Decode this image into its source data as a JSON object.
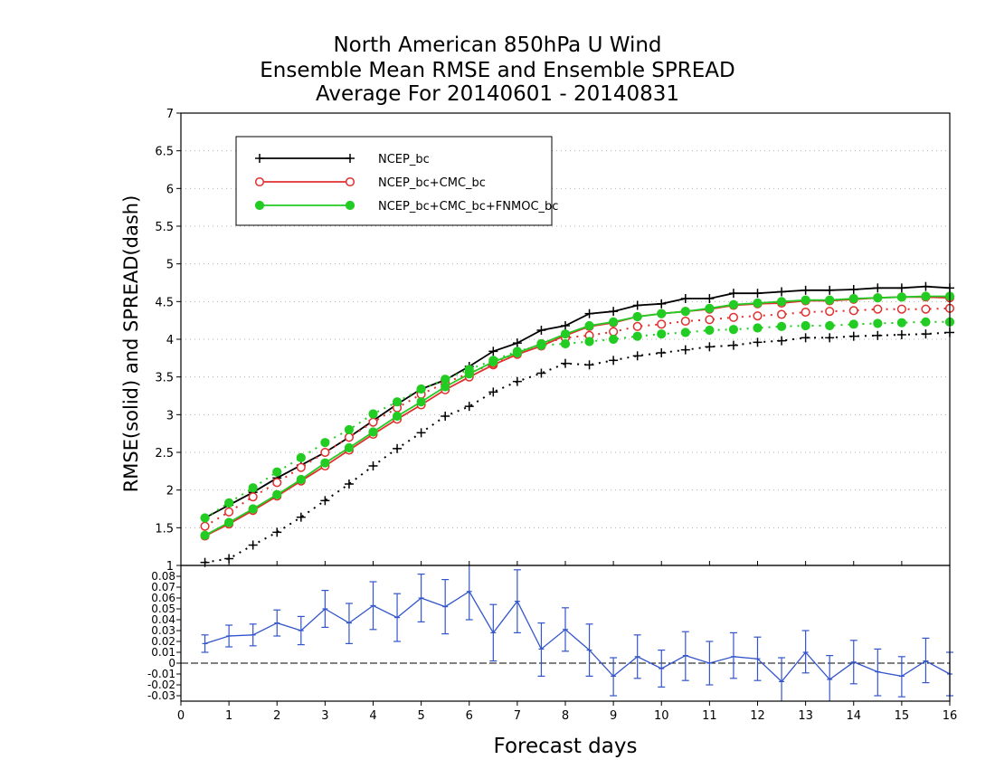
{
  "title": {
    "line1": "North American 850hPa U Wind",
    "line2": "Ensemble Mean RMSE and Ensemble SPREAD",
    "line3": "Average For 20140601 - 20140831"
  },
  "chart_data": [
    {
      "type": "line",
      "ylabel": "RMSE(solid) and SPREAD(dash)",
      "xlim": [
        0,
        16
      ],
      "ylim": [
        1,
        7
      ],
      "yticks": [
        "1",
        "1.5",
        "2",
        "2.5",
        "3",
        "3.5",
        "4",
        "4.5",
        "5",
        "5.5",
        "6",
        "6.5",
        "7"
      ],
      "grid": true,
      "legend_position": "top-left",
      "x": [
        0.5,
        1,
        1.5,
        2,
        2.5,
        3,
        3.5,
        4,
        4.5,
        5,
        5.5,
        6,
        6.5,
        7,
        7.5,
        8,
        8.5,
        9,
        9.5,
        10,
        10.5,
        11,
        11.5,
        12,
        12.5,
        13,
        13.5,
        14,
        14.5,
        15,
        15.5,
        16
      ],
      "series": [
        {
          "name": "NCEP_bc",
          "color": "#000000",
          "marker": "plus",
          "style": "solid",
          "values": [
            1.63,
            1.8,
            1.97,
            2.16,
            2.33,
            2.5,
            2.7,
            2.92,
            3.14,
            3.34,
            3.46,
            3.64,
            3.84,
            3.95,
            4.12,
            4.18,
            4.34,
            4.37,
            4.45,
            4.47,
            4.54,
            4.54,
            4.61,
            4.61,
            4.63,
            4.65,
            4.65,
            4.66,
            4.68,
            4.68,
            4.7,
            4.68
          ]
        },
        {
          "name": "NCEP_bc",
          "color": "#000000",
          "marker": "plus",
          "style": "dotted",
          "values": [
            1.04,
            1.09,
            1.27,
            1.44,
            1.64,
            1.86,
            2.08,
            2.32,
            2.55,
            2.76,
            2.98,
            3.11,
            3.3,
            3.44,
            3.55,
            3.68,
            3.66,
            3.72,
            3.78,
            3.82,
            3.86,
            3.9,
            3.92,
            3.96,
            3.98,
            4.02,
            4.02,
            4.04,
            4.05,
            4.06,
            4.07,
            4.09
          ]
        },
        {
          "name": "NCEP_bc+CMC_bc",
          "color": "#e03030",
          "marker": "open-circle",
          "style": "solid",
          "values": [
            1.39,
            1.55,
            1.73,
            1.92,
            2.12,
            2.32,
            2.53,
            2.74,
            2.94,
            3.13,
            3.33,
            3.5,
            3.66,
            3.8,
            3.91,
            4.05,
            4.17,
            4.22,
            4.3,
            4.34,
            4.37,
            4.4,
            4.45,
            4.47,
            4.48,
            4.51,
            4.51,
            4.53,
            4.55,
            4.56,
            4.56,
            4.55
          ]
        },
        {
          "name": "NCEP_bc+CMC_bc",
          "color": "#e03030",
          "marker": "open-circle",
          "style": "dotted",
          "values": [
            1.52,
            1.71,
            1.91,
            2.1,
            2.3,
            2.5,
            2.7,
            2.9,
            3.09,
            3.27,
            3.42,
            3.55,
            3.68,
            3.82,
            3.94,
            4.02,
            4.05,
            4.1,
            4.17,
            4.2,
            4.24,
            4.26,
            4.29,
            4.31,
            4.33,
            4.36,
            4.37,
            4.38,
            4.4,
            4.4,
            4.4,
            4.41
          ]
        },
        {
          "name": "NCEP_bc+CMC_bc+FNMOC_bc",
          "color": "#22cc22",
          "marker": "filled-circle",
          "style": "solid",
          "values": [
            1.4,
            1.57,
            1.75,
            1.94,
            2.14,
            2.36,
            2.56,
            2.77,
            2.98,
            3.17,
            3.37,
            3.54,
            3.7,
            3.82,
            3.94,
            4.07,
            4.18,
            4.23,
            4.3,
            4.34,
            4.37,
            4.41,
            4.46,
            4.48,
            4.5,
            4.52,
            4.52,
            4.54,
            4.55,
            4.56,
            4.57,
            4.57
          ]
        },
        {
          "name": "NCEP_bc+CMC_bc+FNMOC_bc",
          "color": "#22cc22",
          "marker": "filled-circle",
          "style": "dotted",
          "values": [
            1.63,
            1.83,
            2.03,
            2.24,
            2.43,
            2.63,
            2.8,
            3.01,
            3.17,
            3.34,
            3.47,
            3.6,
            3.72,
            3.84,
            3.92,
            3.94,
            3.97,
            4.0,
            4.04,
            4.07,
            4.09,
            4.12,
            4.13,
            4.15,
            4.17,
            4.18,
            4.18,
            4.2,
            4.21,
            4.22,
            4.23,
            4.23
          ]
        }
      ],
      "legend": [
        "NCEP_bc",
        "NCEP_bc+CMC_bc",
        "NCEP_bc+CMC_bc+FNMOC_bc"
      ]
    },
    {
      "type": "line",
      "description_series": "difference with error bars",
      "xlabel": "Forecast days",
      "xticks": [
        "0",
        "1",
        "2",
        "3",
        "4",
        "5",
        "6",
        "7",
        "8",
        "9",
        "10",
        "11",
        "12",
        "13",
        "14",
        "15",
        "16"
      ],
      "xlim": [
        0,
        16
      ],
      "ylim": [
        -0.035,
        0.09
      ],
      "yticks": [
        "-0.03",
        "-0.02",
        "-0.01",
        "0",
        "0.01",
        "0.02",
        "0.03",
        "0.04",
        "0.05",
        "0.06",
        "0.07",
        "0.08"
      ],
      "zero_line": true,
      "color": "#3355cc",
      "x": [
        0.5,
        1,
        1.5,
        2,
        2.5,
        3,
        3.5,
        4,
        4.5,
        5,
        5.5,
        6,
        6.5,
        7,
        7.5,
        8,
        8.5,
        9,
        9.5,
        10,
        10.5,
        11,
        11.5,
        12,
        12.5,
        13,
        13.5,
        14,
        14.5,
        15,
        15.5,
        16
      ],
      "values": [
        0.018,
        0.025,
        0.026,
        0.037,
        0.03,
        0.05,
        0.037,
        0.053,
        0.042,
        0.06,
        0.052,
        0.066,
        0.028,
        0.057,
        0.013,
        0.031,
        0.012,
        -0.012,
        0.006,
        -0.005,
        0.007,
        0.0,
        0.006,
        0.004,
        -0.017,
        0.01,
        -0.015,
        0.001,
        -0.008,
        -0.012,
        0.002,
        -0.01
      ],
      "err_low": [
        0.01,
        0.015,
        0.016,
        0.025,
        0.017,
        0.033,
        0.018,
        0.031,
        0.02,
        0.038,
        0.027,
        0.04,
        0.002,
        0.028,
        -0.012,
        0.011,
        -0.012,
        -0.03,
        -0.014,
        -0.022,
        -0.016,
        -0.02,
        -0.014,
        -0.016,
        -0.04,
        -0.009,
        -0.038,
        -0.019,
        -0.03,
        -0.031,
        -0.018,
        -0.03
      ],
      "err_high": [
        0.026,
        0.035,
        0.036,
        0.049,
        0.043,
        0.067,
        0.055,
        0.075,
        0.064,
        0.082,
        0.077,
        0.092,
        0.054,
        0.086,
        0.037,
        0.051,
        0.036,
        0.005,
        0.026,
        0.012,
        0.029,
        0.02,
        0.028,
        0.024,
        0.005,
        0.03,
        0.007,
        0.021,
        0.013,
        0.006,
        0.023,
        0.01
      ]
    }
  ]
}
